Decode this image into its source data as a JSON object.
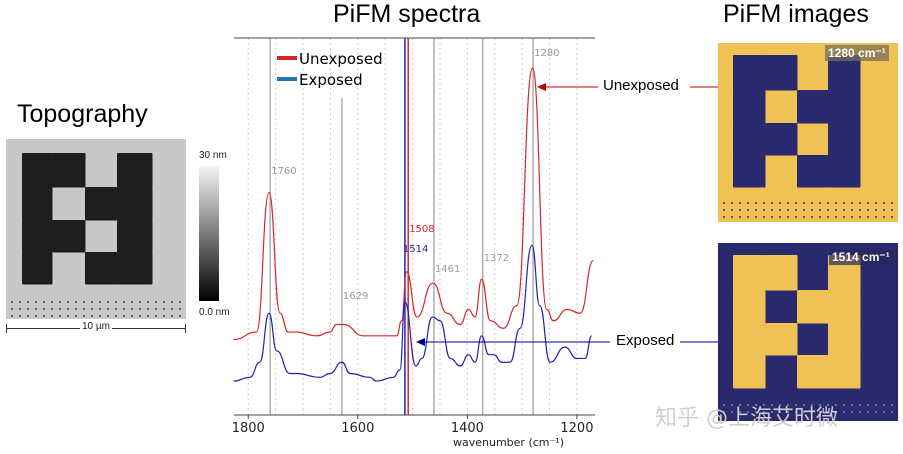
{
  "titles": {
    "topography": "Topography",
    "spectra": "PiFM spectra",
    "images": "PiFM images"
  },
  "topography": {
    "colorbar_max": "30 nm",
    "colorbar_min": "0.0 nm",
    "scale_bar": "10 µm"
  },
  "pifm_images": [
    {
      "label": "1280 cm⁻¹",
      "annotation": "Unexposed"
    },
    {
      "label": "1514 cm⁻¹",
      "annotation": "Exposed"
    }
  ],
  "watermark": "知乎 @上海艾时微",
  "colors": {
    "unexposed": "#d62728",
    "exposed": "#2222b0",
    "legend_exposed": "#1f77b4",
    "yellow": "#f0c155",
    "navy": "#2a2a6e"
  },
  "chart_data": {
    "type": "line",
    "title": "PiFM spectra",
    "xlabel": "wavenumber (cm⁻¹)",
    "ylabel": "",
    "xlim": [
      1826,
      1167
    ],
    "ylim": [
      0,
      1
    ],
    "x_ticks": [
      "1800",
      "1600",
      "1400",
      "1200"
    ],
    "x_tick_values": [
      1800,
      1600,
      1400,
      1200
    ],
    "legend": {
      "placement": "top-left",
      "entries": [
        "Unexposed",
        "Exposed"
      ]
    },
    "grid": "dotted vertical",
    "series": [
      {
        "name": "Unexposed",
        "color": "#d62728",
        "x": [
          1827,
          1785,
          1762,
          1742,
          1727,
          1712,
          1675,
          1651,
          1639,
          1626,
          1590,
          1559,
          1529,
          1520,
          1511,
          1492,
          1463,
          1437,
          1413,
          1398,
          1386,
          1374,
          1358,
          1334,
          1310,
          1281,
          1255,
          1243,
          1218,
          1194,
          1170
        ],
        "y": [
          0.2,
          0.22,
          0.59,
          0.27,
          0.22,
          0.22,
          0.21,
          0.22,
          0.24,
          0.24,
          0.21,
          0.21,
          0.21,
          0.25,
          0.38,
          0.26,
          0.35,
          0.27,
          0.24,
          0.28,
          0.26,
          0.36,
          0.25,
          0.23,
          0.29,
          0.92,
          0.28,
          0.25,
          0.28,
          0.27,
          0.41
        ]
      },
      {
        "name": "Exposed",
        "color": "#2222b0",
        "x": [
          1827,
          1797,
          1779,
          1762,
          1748,
          1724,
          1712,
          1669,
          1651,
          1629,
          1614,
          1578,
          1566,
          1535,
          1523,
          1514,
          1494,
          1483,
          1464,
          1450,
          1431,
          1413,
          1398,
          1386,
          1374,
          1361,
          1352,
          1337,
          1322,
          1304,
          1282,
          1268,
          1249,
          1222,
          1200,
          1185,
          1173
        ],
        "y": [
          0.09,
          0.1,
          0.14,
          0.27,
          0.17,
          0.11,
          0.11,
          0.1,
          0.11,
          0.14,
          0.11,
          0.1,
          0.09,
          0.1,
          0.12,
          0.3,
          0.13,
          0.15,
          0.26,
          0.25,
          0.15,
          0.13,
          0.16,
          0.14,
          0.21,
          0.16,
          0.16,
          0.14,
          0.14,
          0.23,
          0.45,
          0.29,
          0.14,
          0.18,
          0.15,
          0.15,
          0.21
        ]
      }
    ],
    "reference_lines": [
      {
        "x": 1760,
        "label": "1760",
        "color": "#999999"
      },
      {
        "x": 1629,
        "label": "1629",
        "color": "#999999"
      },
      {
        "x": 1514,
        "label": "1514",
        "color": "#2222b0"
      },
      {
        "x": 1508,
        "label": "1508",
        "color": "#d62728"
      },
      {
        "x": 1461,
        "label": "1461",
        "color": "#999999"
      },
      {
        "x": 1372,
        "label": "1372",
        "color": "#999999"
      },
      {
        "x": 1280,
        "label": "1280",
        "color": "#999999"
      }
    ]
  }
}
